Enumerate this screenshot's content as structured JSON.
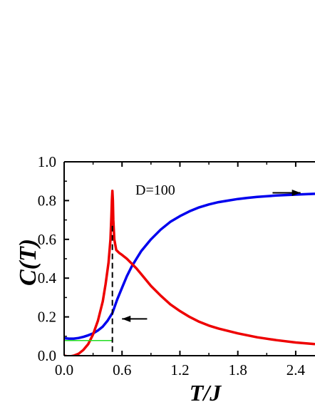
{
  "chart_data": {
    "type": "line",
    "title": "",
    "xlabel": "T/J",
    "ylabel": "C(T)",
    "xlim": [
      0.0,
      2.6
    ],
    "ylim": [
      0.0,
      1.0
    ],
    "xticks": [
      "0.0",
      "0.6",
      "1.2",
      "1.8",
      "2.4"
    ],
    "yticks": [
      "0.0",
      "0.2",
      "0.4",
      "0.6",
      "0.8",
      "1.0"
    ],
    "grid": false,
    "annotation": "D=100",
    "colors": {
      "blue": "#0000ee",
      "red": "#ee0000",
      "green": "#22dd22",
      "axis": "#000000"
    },
    "series": [
      {
        "color": "#0000ee",
        "points": [
          [
            0.0,
            0.09
          ],
          [
            0.05,
            0.088
          ],
          [
            0.1,
            0.088
          ],
          [
            0.15,
            0.091
          ],
          [
            0.2,
            0.097
          ],
          [
            0.25,
            0.105
          ],
          [
            0.3,
            0.115
          ],
          [
            0.35,
            0.13
          ],
          [
            0.4,
            0.15
          ],
          [
            0.45,
            0.18
          ],
          [
            0.5,
            0.22
          ],
          [
            0.55,
            0.29
          ],
          [
            0.6,
            0.35
          ],
          [
            0.65,
            0.41
          ],
          [
            0.7,
            0.46
          ],
          [
            0.75,
            0.5
          ],
          [
            0.8,
            0.54
          ],
          [
            0.9,
            0.6
          ],
          [
            1.0,
            0.65
          ],
          [
            1.1,
            0.69
          ],
          [
            1.2,
            0.72
          ],
          [
            1.3,
            0.745
          ],
          [
            1.4,
            0.765
          ],
          [
            1.5,
            0.78
          ],
          [
            1.6,
            0.792
          ],
          [
            1.7,
            0.8
          ],
          [
            1.8,
            0.808
          ],
          [
            1.9,
            0.814
          ],
          [
            2.0,
            0.819
          ],
          [
            2.2,
            0.826
          ],
          [
            2.4,
            0.831
          ],
          [
            2.6,
            0.835
          ]
        ]
      },
      {
        "color": "#ee0000",
        "points": [
          [
            0.0,
            0.0
          ],
          [
            0.05,
            -0.005
          ],
          [
            0.1,
            0.0
          ],
          [
            0.15,
            0.01
          ],
          [
            0.2,
            0.03
          ],
          [
            0.25,
            0.06
          ],
          [
            0.3,
            0.11
          ],
          [
            0.35,
            0.18
          ],
          [
            0.4,
            0.28
          ],
          [
            0.43,
            0.37
          ],
          [
            0.46,
            0.48
          ],
          [
            0.48,
            0.6
          ],
          [
            0.49,
            0.72
          ],
          [
            0.495,
            0.8
          ],
          [
            0.5,
            0.85
          ],
          [
            0.505,
            0.8
          ],
          [
            0.51,
            0.7
          ],
          [
            0.52,
            0.6
          ],
          [
            0.54,
            0.545
          ],
          [
            0.57,
            0.53
          ],
          [
            0.6,
            0.52
          ],
          [
            0.65,
            0.5
          ],
          [
            0.7,
            0.475
          ],
          [
            0.75,
            0.45
          ],
          [
            0.8,
            0.42
          ],
          [
            0.9,
            0.36
          ],
          [
            1.0,
            0.31
          ],
          [
            1.1,
            0.265
          ],
          [
            1.2,
            0.23
          ],
          [
            1.3,
            0.2
          ],
          [
            1.4,
            0.175
          ],
          [
            1.5,
            0.155
          ],
          [
            1.6,
            0.14
          ],
          [
            1.8,
            0.115
          ],
          [
            2.0,
            0.095
          ],
          [
            2.2,
            0.08
          ],
          [
            2.4,
            0.068
          ],
          [
            2.6,
            0.06
          ]
        ]
      },
      {
        "color": "#22dd22",
        "points": [
          [
            0.0,
            0.078
          ],
          [
            0.5,
            0.078
          ]
        ]
      }
    ],
    "vline": {
      "x": 0.5,
      "y_top": 0.67,
      "style": "dashed"
    },
    "arrows": [
      {
        "from": [
          2.16,
          0.84
        ],
        "to": [
          2.45,
          0.84
        ],
        "direction": "right"
      },
      {
        "from": [
          0.86,
          0.19
        ],
        "to": [
          0.6,
          0.19
        ],
        "direction": "left"
      }
    ]
  }
}
